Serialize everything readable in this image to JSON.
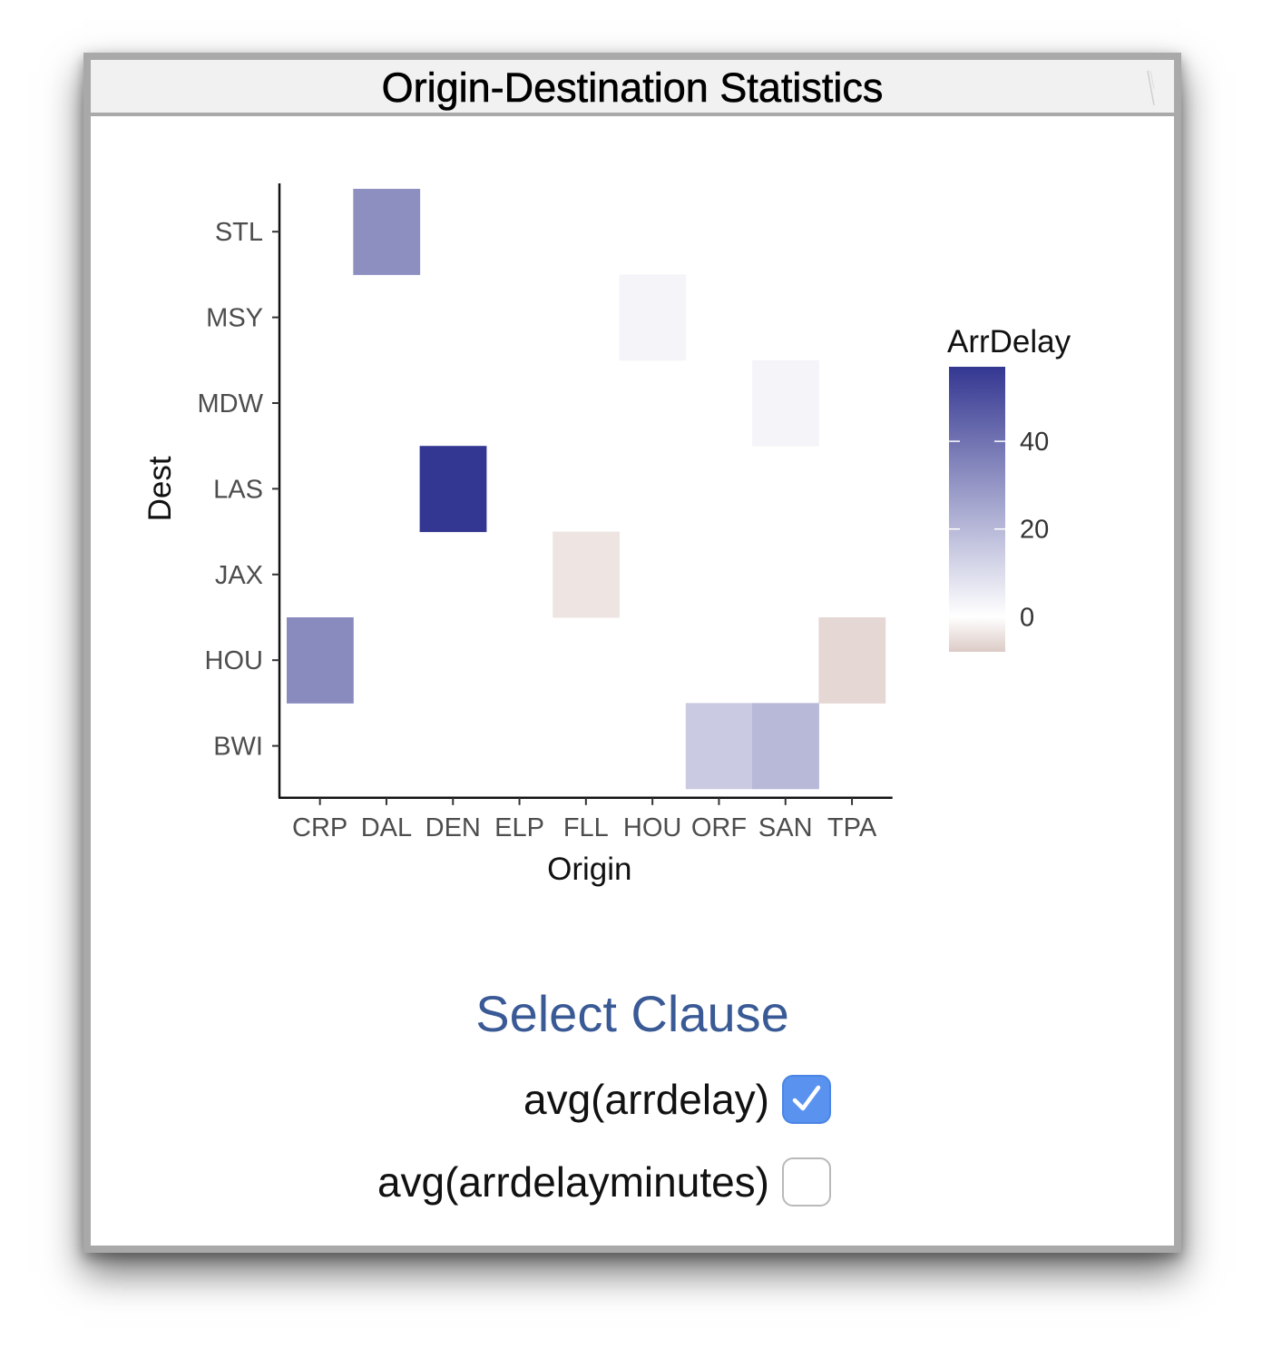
{
  "window": {
    "title": "Origin-Destination Statistics"
  },
  "chart_data": {
    "type": "heatmap",
    "xlabel": "Origin",
    "ylabel": "Dest",
    "x_categories": [
      "CRP",
      "DAL",
      "DEN",
      "ELP",
      "FLL",
      "HOU",
      "ORF",
      "SAN",
      "TPA"
    ],
    "y_categories": [
      "BWI",
      "HOU",
      "JAX",
      "LAS",
      "MDW",
      "MSY",
      "STL"
    ],
    "cells": [
      {
        "x": "DAL",
        "y": "STL",
        "value": 32
      },
      {
        "x": "HOU",
        "y": "MSY",
        "value": 3
      },
      {
        "x": "SAN",
        "y": "MDW",
        "value": 3
      },
      {
        "x": "DEN",
        "y": "LAS",
        "value": 57
      },
      {
        "x": "FLL",
        "y": "JAX",
        "value": -4
      },
      {
        "x": "CRP",
        "y": "HOU",
        "value": 33
      },
      {
        "x": "ELP",
        "y": "HOU",
        "value": 0
      },
      {
        "x": "TPA",
        "y": "HOU",
        "value": -6
      },
      {
        "x": "ORF",
        "y": "BWI",
        "value": 15
      },
      {
        "x": "SAN",
        "y": "BWI",
        "value": 20
      }
    ],
    "legend": {
      "title": "ArrDelay",
      "ticks": [
        40,
        20,
        0
      ],
      "range": [
        -8,
        57
      ],
      "colors": {
        "low": "#dccbc6",
        "mid": "#ffffff",
        "high": "#343791"
      },
      "position": "right"
    },
    "grid": false
  },
  "select_clause": {
    "title": "Select Clause",
    "options": [
      {
        "label": "avg(arrdelay)",
        "checked": true
      },
      {
        "label": "avg(arrdelayminutes)",
        "checked": false
      }
    ]
  }
}
